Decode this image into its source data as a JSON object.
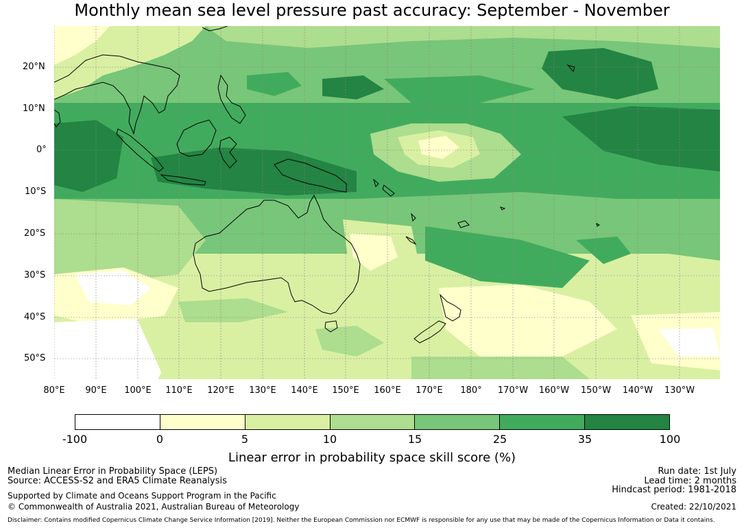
{
  "title": "Monthly mean sea level pressure past accuracy: September - November",
  "map": {
    "lat_labels": [
      "20°N",
      "10°N",
      "0°",
      "10°S",
      "20°S",
      "30°S",
      "40°S",
      "50°S"
    ],
    "lon_labels": [
      "80°E",
      "90°E",
      "100°E",
      "110°E",
      "120°E",
      "130°E",
      "140°E",
      "150°E",
      "160°E",
      "170°E",
      "180°",
      "170°W",
      "160°W",
      "150°W",
      "140°W",
      "130°W"
    ],
    "coastline_color": "#000000",
    "gridline_color": "#888888",
    "bin_colors": [
      "#ffffff",
      "#ffffcc",
      "#d9f0a3",
      "#addd8e",
      "#78c679",
      "#41ab5d",
      "#238443"
    ]
  },
  "colorbar": {
    "ticks": [
      "-100",
      "0",
      "5",
      "10",
      "15",
      "25",
      "35",
      "100"
    ],
    "colors": [
      "#ffffff",
      "#ffffcc",
      "#d9f0a3",
      "#addd8e",
      "#78c679",
      "#41ab5d",
      "#238443"
    ],
    "label": "Linear error in probability space skill score (%)"
  },
  "footer": {
    "method": "Median Linear Error in Probability Space (LEPS)",
    "source": "Source: ACCESS-S2 and ERA5 Climate Reanalysis",
    "supported": "Supported by Climate and Oceans Support Program in the Pacific",
    "copyright": "© Commonwealth of Australia 2021, Australian Bureau of Meteorology",
    "run_date": "Run date: 1st July",
    "lead_time": "Lead time: 2 months",
    "hindcast": "Hindcast period: 1981-2018",
    "created": "Created: 22/10/2021",
    "disclaimer": "Disclaimer: Contains modified Copernicus Climate Change Service Information [2019]. Neither the European Commission nor ECMWF is responsible for any use that may be made of the Copernicus Information or Data it contains."
  }
}
